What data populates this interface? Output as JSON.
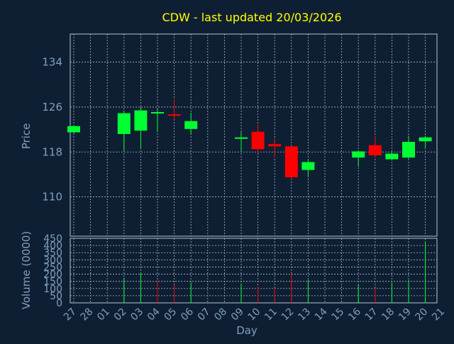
{
  "chart_data": [
    {
      "type": "candlestick",
      "title": "CDW - last updated 20/03/2026",
      "xlabel": "",
      "ylabel": "Price",
      "ylim": [
        103,
        139
      ],
      "yticks": [
        110,
        118,
        126,
        134
      ],
      "grid": true,
      "x": [
        "27",
        "28",
        "01",
        "02",
        "03",
        "04",
        "05",
        "06",
        "07",
        "08",
        "09",
        "10",
        "11",
        "12",
        "13",
        "14",
        "15",
        "16",
        "17",
        "18",
        "19",
        "20",
        "21"
      ],
      "candles": [
        {
          "x": "27",
          "open": 121.5,
          "high": 122.8,
          "low": 121.3,
          "close": 122.6
        },
        {
          "x": "02",
          "open": 121.2,
          "high": 125.3,
          "low": 118.3,
          "close": 124.9
        },
        {
          "x": "03",
          "open": 121.8,
          "high": 126.0,
          "low": 118.5,
          "close": 125.4
        },
        {
          "x": "04",
          "open": 125.1,
          "high": 125.8,
          "low": 121.5,
          "close": 125.1
        },
        {
          "x": "05",
          "open": 124.7,
          "high": 127.4,
          "low": 123.8,
          "close": 124.5
        },
        {
          "x": "06",
          "open": 122.1,
          "high": 125.0,
          "low": 121.1,
          "close": 123.5
        },
        {
          "x": "09",
          "open": 120.6,
          "high": 121.6,
          "low": 118.2,
          "close": 120.6
        },
        {
          "x": "10",
          "open": 121.6,
          "high": 122.9,
          "low": 117.8,
          "close": 118.5
        },
        {
          "x": "11",
          "open": 119.4,
          "high": 120.4,
          "low": 117.0,
          "close": 119.0
        },
        {
          "x": "12",
          "open": 119.0,
          "high": 119.1,
          "low": 113.1,
          "close": 113.5
        },
        {
          "x": "13",
          "open": 114.8,
          "high": 116.5,
          "low": 113.6,
          "close": 116.2
        },
        {
          "x": "16",
          "open": 117.0,
          "high": 118.3,
          "low": 115.4,
          "close": 118.1
        },
        {
          "x": "17",
          "open": 119.2,
          "high": 120.9,
          "low": 117.0,
          "close": 117.4
        },
        {
          "x": "18",
          "open": 116.7,
          "high": 117.9,
          "low": 116.5,
          "close": 117.7
        },
        {
          "x": "19",
          "open": 117.0,
          "high": 120.9,
          "low": 116.8,
          "close": 119.8
        },
        {
          "x": "20",
          "open": 119.9,
          "high": 120.9,
          "low": 118.8,
          "close": 120.6
        }
      ],
      "colors": {
        "up": "#00ff33",
        "down": "#ff0000",
        "background": "#0f1f33",
        "plot_border": "#b7c2d0",
        "text": "#7f9fbf",
        "title": "#ffff00"
      }
    },
    {
      "type": "bar",
      "xlabel": "Day",
      "ylabel": "Volume (0000)",
      "ylim": [
        0,
        450
      ],
      "yticks": [
        0,
        50,
        100,
        150,
        200,
        250,
        300,
        350,
        400,
        450
      ],
      "grid": true,
      "x": [
        "27",
        "28",
        "01",
        "02",
        "03",
        "04",
        "05",
        "06",
        "07",
        "08",
        "09",
        "10",
        "11",
        "12",
        "13",
        "14",
        "15",
        "16",
        "17",
        "18",
        "19",
        "20",
        "21"
      ],
      "values": [
        {
          "x": "02",
          "v": 175,
          "dir": "up"
        },
        {
          "x": "03",
          "v": 210,
          "dir": "up"
        },
        {
          "x": "04",
          "v": 155,
          "dir": "down"
        },
        {
          "x": "05",
          "v": 125,
          "dir": "down"
        },
        {
          "x": "06",
          "v": 140,
          "dir": "up"
        },
        {
          "x": "09",
          "v": 135,
          "dir": "up"
        },
        {
          "x": "10",
          "v": 115,
          "dir": "down"
        },
        {
          "x": "11",
          "v": 105,
          "dir": "down"
        },
        {
          "x": "12",
          "v": 205,
          "dir": "down"
        },
        {
          "x": "13",
          "v": 160,
          "dir": "up"
        },
        {
          "x": "16",
          "v": 125,
          "dir": "up"
        },
        {
          "x": "17",
          "v": 100,
          "dir": "down"
        },
        {
          "x": "18",
          "v": 140,
          "dir": "up"
        },
        {
          "x": "19",
          "v": 160,
          "dir": "up"
        },
        {
          "x": "20",
          "v": 420,
          "dir": "up"
        }
      ]
    }
  ]
}
